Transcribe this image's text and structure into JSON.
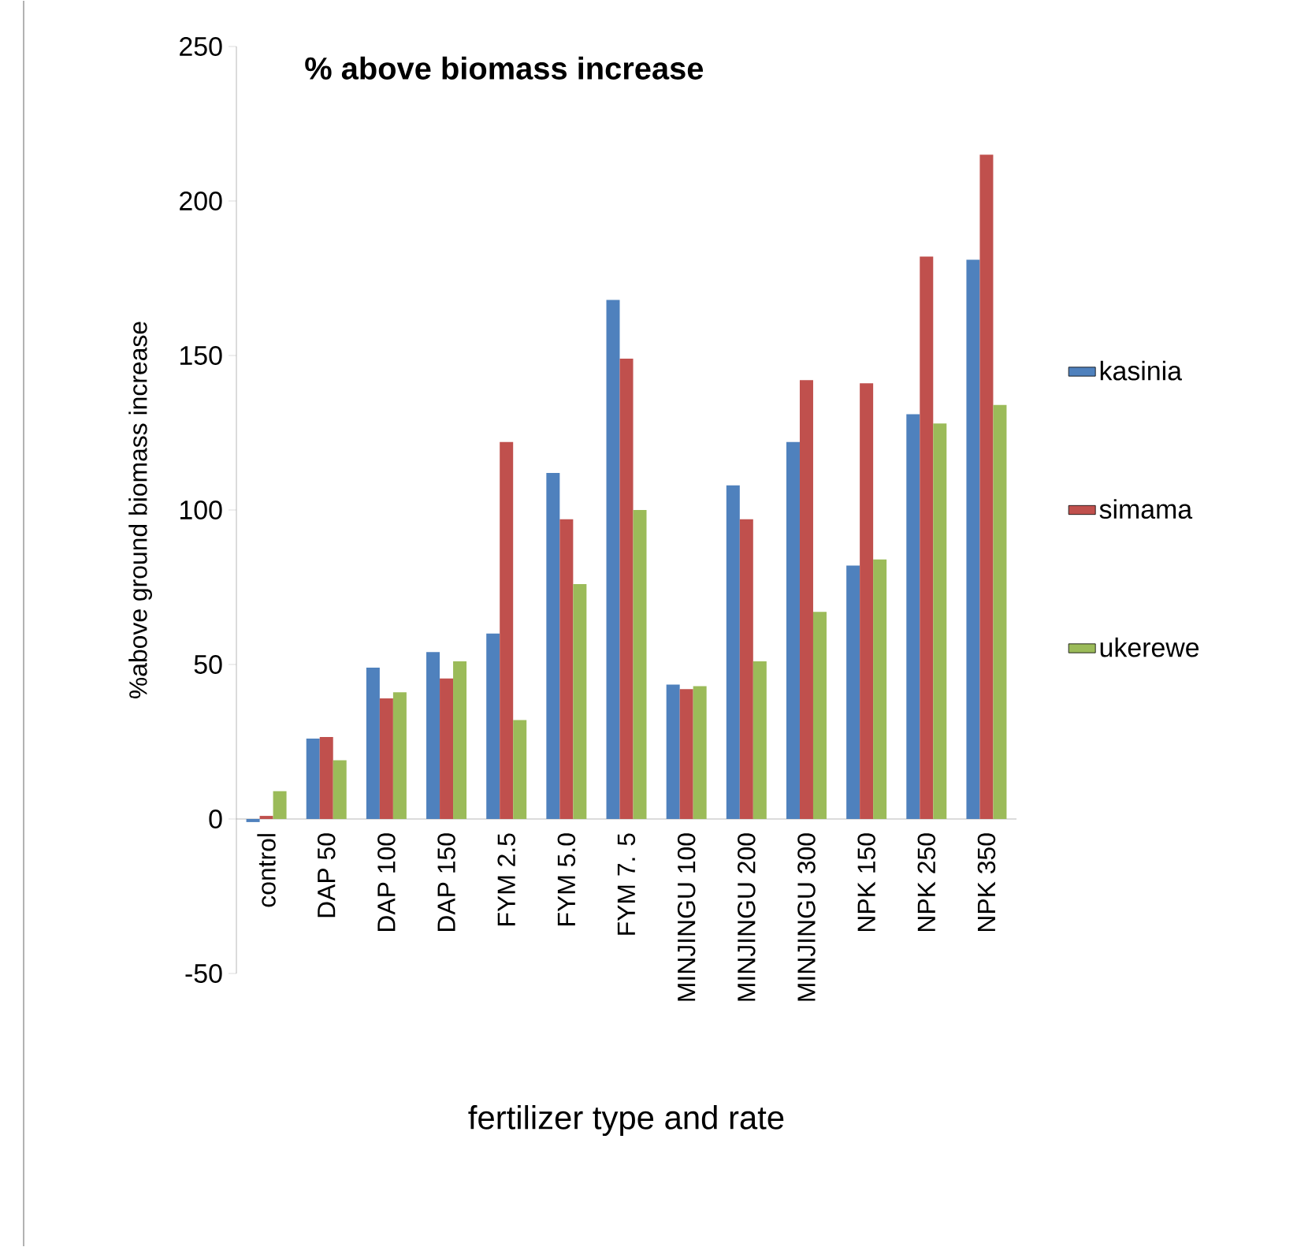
{
  "chart_data": {
    "type": "bar",
    "title": "% above biomass increase",
    "xlabel": "fertilizer type and rate",
    "ylabel": "%above ground biomass increase",
    "categories": [
      "control",
      "DAP 50",
      "DAP 100",
      "DAP 150",
      "FYM 2.5",
      "FYM 5.0",
      "FYM 7. 5",
      "MINJINGU 100",
      "MINJINGU 200",
      "MINJINGU 300",
      "NPK 150",
      "NPK 250",
      "NPK 350"
    ],
    "series": [
      {
        "name": "kasinia",
        "color": "#4f81bd",
        "values": [
          -1,
          26,
          49,
          54,
          60,
          112,
          168,
          43.5,
          108,
          122,
          82,
          131,
          181
        ]
      },
      {
        "name": "simama",
        "color": "#c0504d",
        "values": [
          1,
          26.5,
          39,
          45.5,
          122,
          97,
          149,
          42,
          97,
          142,
          141,
          182,
          215
        ]
      },
      {
        "name": "ukerewe",
        "color": "#9bbb59",
        "values": [
          9,
          19,
          41,
          51,
          32,
          76,
          100,
          43,
          51,
          67,
          84,
          128,
          134
        ]
      }
    ],
    "ylim": [
      -50,
      250
    ],
    "yticks": [
      -50,
      0,
      50,
      100,
      150,
      200,
      250
    ],
    "legend": "right"
  }
}
